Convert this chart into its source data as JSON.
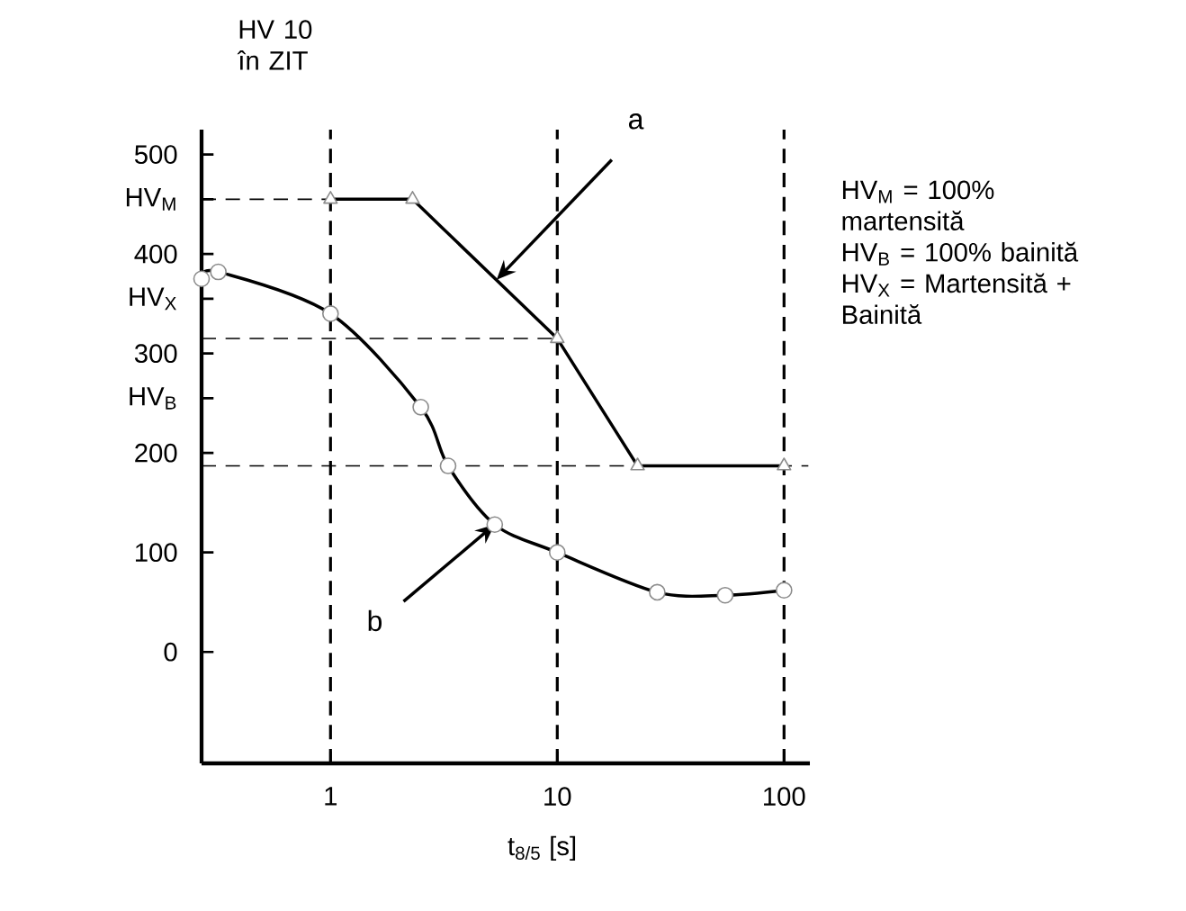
{
  "chart_data": {
    "type": "line",
    "ylabel": "HV 10 în ZIT",
    "xlabel": "t$_{8/5}$ [s]",
    "log": "x",
    "xlim": [
      0.27,
      130
    ],
    "ylim": [
      -112,
      525
    ],
    "xticks": [
      1,
      10,
      100
    ],
    "yticks": [
      0,
      100,
      200,
      300,
      400,
      500,
      {
        "value": 455,
        "label": "HV$_{M}$"
      },
      {
        "value": 355,
        "label": "HV$_{X}$"
      },
      {
        "value": 255,
        "label": "HV$_{B}$"
      }
    ],
    "series": [
      {
        "color": "#000000",
        "marker": "triangle",
        "x": [
          1,
          2.3,
          10,
          22.6,
          100
        ],
        "values": [
          455,
          455,
          315,
          187,
          187
        ]
      },
      {
        "color": "#000000",
        "marker": "circle",
        "x": [
          0.27,
          0.32,
          1,
          2.5,
          3.3,
          5.3,
          10,
          27.6,
          55,
          100
        ],
        "values": [
          375,
          382,
          340,
          246,
          187,
          128,
          100,
          60,
          57,
          62
        ]
      },
      {
        "color": "#000000",
        "line_style": "dashed",
        "x": [
          0.27,
          1
        ],
        "values": [
          455,
          455
        ]
      },
      {
        "color": "#000000",
        "line_style": "dashed",
        "x": [
          0.27,
          10
        ],
        "values": [
          315,
          315
        ]
      },
      {
        "color": "#000000",
        "line_style": "dashed",
        "x": [
          0.27,
          128
        ],
        "values": [
          187,
          187
        ]
      }
    ],
    "ref_lines": [
      {
        "axis": "x",
        "value": 1,
        "line_style": "dashed",
        "color": "#000000"
      },
      {
        "axis": "x",
        "value": 10,
        "line_style": "dashed",
        "color": "#000000"
      },
      {
        "axis": "x",
        "value": 100,
        "line_style": "dashed",
        "color": "#000000"
      }
    ],
    "annotations": [
      {
        "text": "a",
        "x": 5.4,
        "y": 374
      },
      {
        "text": "b",
        "x": 5.3,
        "y": 128
      },
      "HV$_{M}$ = 100% martensită",
      "HV$_{B}$ = 100% bainită",
      "HV$_{X}$ = Martensită + Bainită"
    ]
  }
}
